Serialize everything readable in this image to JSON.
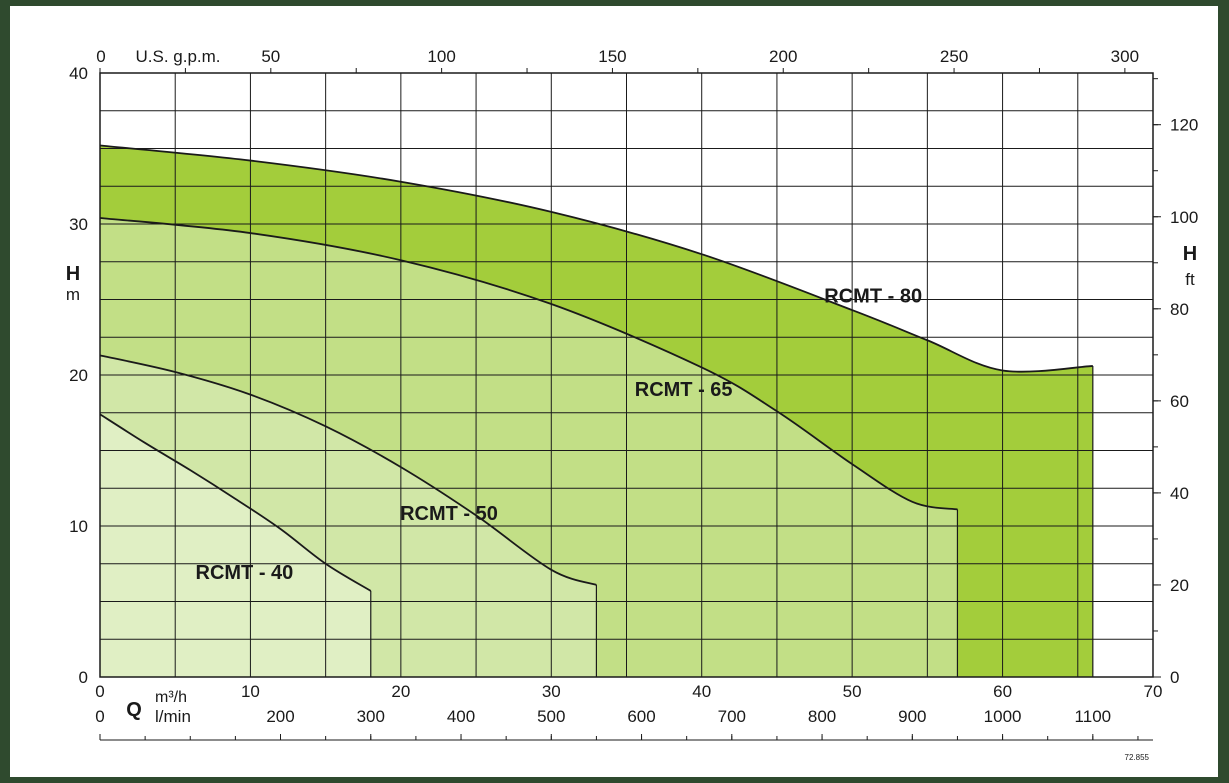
{
  "chart_data": {
    "type": "area",
    "title": "",
    "xlabel": "Q",
    "x_unit_primary": "m³/h",
    "x_unit_lmin": "l/min",
    "x_unit_gpm": "U.S. g.p.m.",
    "ylabel": "H",
    "y_unit_left": "m",
    "y_unit_right": "ft",
    "xlim": [
      0,
      70
    ],
    "ylim": [
      0,
      40
    ],
    "grid": true,
    "x_ticks": [
      "0",
      "10",
      "20",
      "30",
      "40",
      "50",
      "60",
      "70"
    ],
    "lmin_ticks": [
      "0",
      "200",
      "300",
      "400",
      "500",
      "600",
      "700",
      "800",
      "900",
      "1000",
      "1100"
    ],
    "gpm_ticks": [
      "0",
      "50",
      "100",
      "150",
      "200",
      "250",
      "300"
    ],
    "y_ticks": [
      "0",
      "10",
      "20",
      "30",
      "40"
    ],
    "ft_ticks": [
      "0",
      "20",
      "40",
      "60",
      "80",
      "100",
      "120"
    ],
    "series": [
      {
        "name": "RCMT - 80",
        "color": "#a3cd3b",
        "x": [
          0,
          10,
          20,
          30,
          40,
          50,
          55,
          60,
          66
        ],
        "y": [
          35.2,
          34.2,
          32.8,
          30.8,
          28.0,
          24.3,
          22.3,
          20.3,
          20.6
        ],
        "x_max": 66
      },
      {
        "name": "RCMT - 65",
        "color": "#c2df86",
        "x": [
          0,
          10,
          20,
          30,
          40,
          45,
          50,
          54,
          57
        ],
        "y": [
          30.4,
          29.4,
          27.6,
          24.7,
          20.5,
          17.6,
          14.1,
          11.6,
          11.1
        ],
        "x_max": 57
      },
      {
        "name": "RCMT - 50",
        "color": "#d1e7a7",
        "x": [
          0,
          5,
          10,
          15,
          20,
          25,
          30,
          33
        ],
        "y": [
          21.3,
          20.2,
          18.7,
          16.6,
          13.9,
          10.7,
          7.1,
          6.1
        ],
        "x_max": 33
      },
      {
        "name": "RCMT - 40",
        "color": "#e0efc4",
        "x": [
          0,
          3,
          6,
          9,
          12,
          15,
          18
        ],
        "y": [
          17.4,
          15.5,
          13.7,
          11.8,
          9.8,
          7.5,
          5.7
        ],
        "x_max": 18
      }
    ],
    "code": "72.855"
  }
}
